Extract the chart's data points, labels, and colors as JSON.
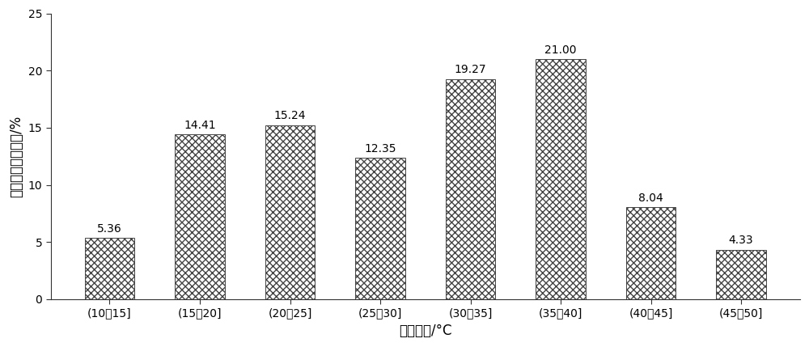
{
  "categories": [
    "(10～15]",
    "(15～20]",
    "(20～25]",
    "(25～30]",
    "(30～35]",
    "(35～40]",
    "(40～45]",
    "(45～50]"
  ],
  "values": [
    5.36,
    14.41,
    15.24,
    12.35,
    19.27,
    21.0,
    8.04,
    4.33
  ],
  "bar_color": "#ffffff",
  "bar_edge_color": "#444444",
  "hatch_pattern": "xxxx",
  "ylabel": "全年温度分布频率/%",
  "xlabel": "温度区间/°C",
  "ylim": [
    0,
    25
  ],
  "yticks": [
    0,
    5,
    10,
    15,
    20,
    25
  ],
  "label_fontsize": 12,
  "tick_fontsize": 10,
  "annotation_fontsize": 10,
  "bar_width": 0.55,
  "figure_width": 10.0,
  "figure_height": 4.29,
  "dpi": 100
}
